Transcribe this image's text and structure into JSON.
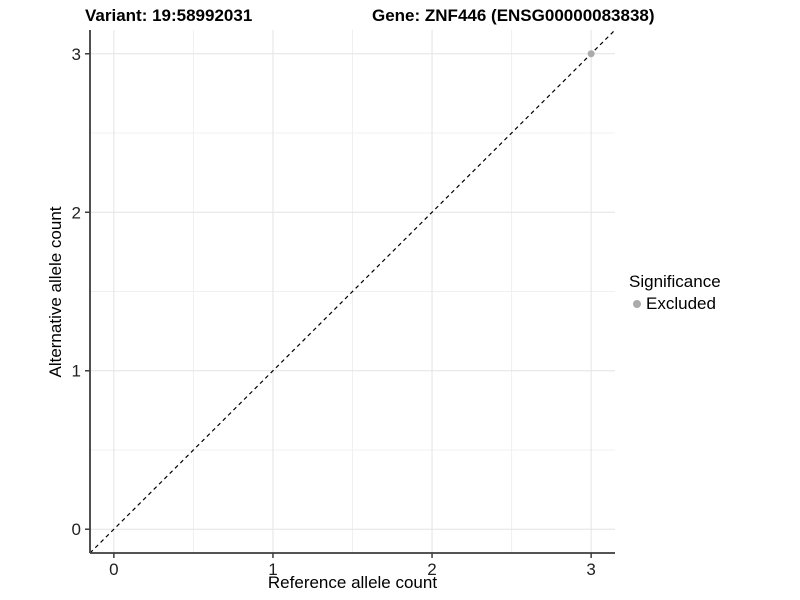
{
  "chart_data": {
    "type": "scatter",
    "titles": {
      "variant": "Variant: 19:58992031",
      "gene": "Gene: ZNF446 (ENSG00000083838)"
    },
    "xlabel": "Reference allele count",
    "ylabel": "Alternative allele count",
    "xlim": [
      -0.15,
      3.15
    ],
    "ylim": [
      -0.15,
      3.15
    ],
    "xticks": [
      0,
      1,
      2,
      3
    ],
    "yticks": [
      0,
      1,
      2,
      3
    ],
    "xticks_minor": [
      0.5,
      1.5,
      2.5
    ],
    "yticks_minor": [
      0.5,
      1.5,
      2.5
    ],
    "grid": "major+minor",
    "identity_line": {
      "style": "dashed",
      "color": "#000000",
      "from": [
        -0.15,
        -0.15
      ],
      "to": [
        3.15,
        3.15
      ]
    },
    "series": [
      {
        "name": "Excluded",
        "marker": "circle",
        "color": "#ababab",
        "points": [
          [
            3,
            3
          ]
        ]
      }
    ],
    "legend": {
      "title": "Significance",
      "position": "right",
      "entries": [
        {
          "label": "Excluded",
          "marker": "circle",
          "color": "#ababab"
        }
      ]
    },
    "colors": {
      "grid_major": "#e4e4e4",
      "grid_minor": "#f0f0f0",
      "axis": "#3c3c3c",
      "tick_text": "#1f1f1f",
      "background": "#ffffff"
    }
  }
}
